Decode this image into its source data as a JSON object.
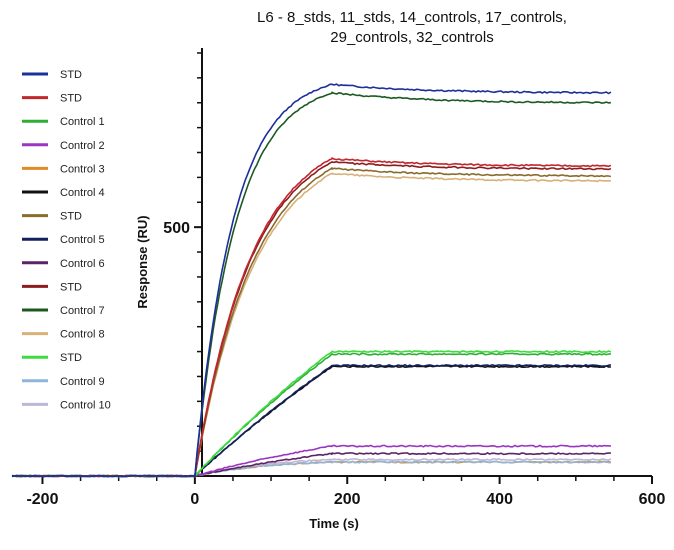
{
  "chart_data": {
    "type": "line",
    "title_lines": [
      "L6 - 8_stds, 11_stds, 14_controls, 17_controls,",
      "29_controls, 32_controls"
    ],
    "xlabel": "Time (s)",
    "ylabel": "Response (RU)",
    "xlim": [
      -240,
      600
    ],
    "ylim": [
      0,
      860
    ],
    "x_ticks": [
      -200,
      0,
      200,
      400,
      600
    ],
    "x_tick_labels": [
      "-200",
      "0",
      "200",
      "400",
      "600"
    ],
    "y_labeled_ticks": [
      500
    ],
    "y_tick_labels": [
      "500"
    ],
    "y_minor_step": 50,
    "injection_end": 180,
    "dissociation_end": 548,
    "grid": false,
    "legend_position": "left",
    "series": [
      {
        "name": "STD",
        "color": "#1c2f9a",
        "plateau": 787,
        "end": 770,
        "k": 0.02
      },
      {
        "name": "STD",
        "color": "#c0282d",
        "plateau": 638,
        "end": 623,
        "k": 0.0135
      },
      {
        "name": "Control 1",
        "color": "#2fae36",
        "plateau": 245,
        "end": 245,
        "k": 0.002
      },
      {
        "name": "Control 2",
        "color": "#9b35c2",
        "plateau": 60,
        "end": 60,
        "k": 0.003
      },
      {
        "name": "Control 3",
        "color": "#e08a2a",
        "plateau": 28,
        "end": 28,
        "k": 0.01
      },
      {
        "name": "Control 4",
        "color": "#111111",
        "plateau": 220,
        "end": 220,
        "k": 0.0015
      },
      {
        "name": "STD",
        "color": "#8a6b2e",
        "plateau": 618,
        "end": 603,
        "k": 0.013
      },
      {
        "name": "Control 5",
        "color": "#14205e",
        "plateau": 222,
        "end": 222,
        "k": 0.0015
      },
      {
        "name": "Control 6",
        "color": "#5b2466",
        "plateau": 45,
        "end": 45,
        "k": 0.003
      },
      {
        "name": "STD",
        "color": "#8c1c1f",
        "plateau": 631,
        "end": 617,
        "k": 0.0135
      },
      {
        "name": "Control 7",
        "color": "#1d5a22",
        "plateau": 770,
        "end": 750,
        "k": 0.019
      },
      {
        "name": "Control 8",
        "color": "#d8b07a",
        "plateau": 608,
        "end": 593,
        "k": 0.0128
      },
      {
        "name": "STD",
        "color": "#3ddb3f",
        "plateau": 250,
        "end": 250,
        "k": 0.002
      },
      {
        "name": "Control 9",
        "color": "#8fb6d8",
        "plateau": 28,
        "end": 28,
        "k": 0.01
      },
      {
        "name": "Control 10",
        "color": "#bdb6d8",
        "plateau": 33,
        "end": 33,
        "k": 0.01
      }
    ]
  }
}
